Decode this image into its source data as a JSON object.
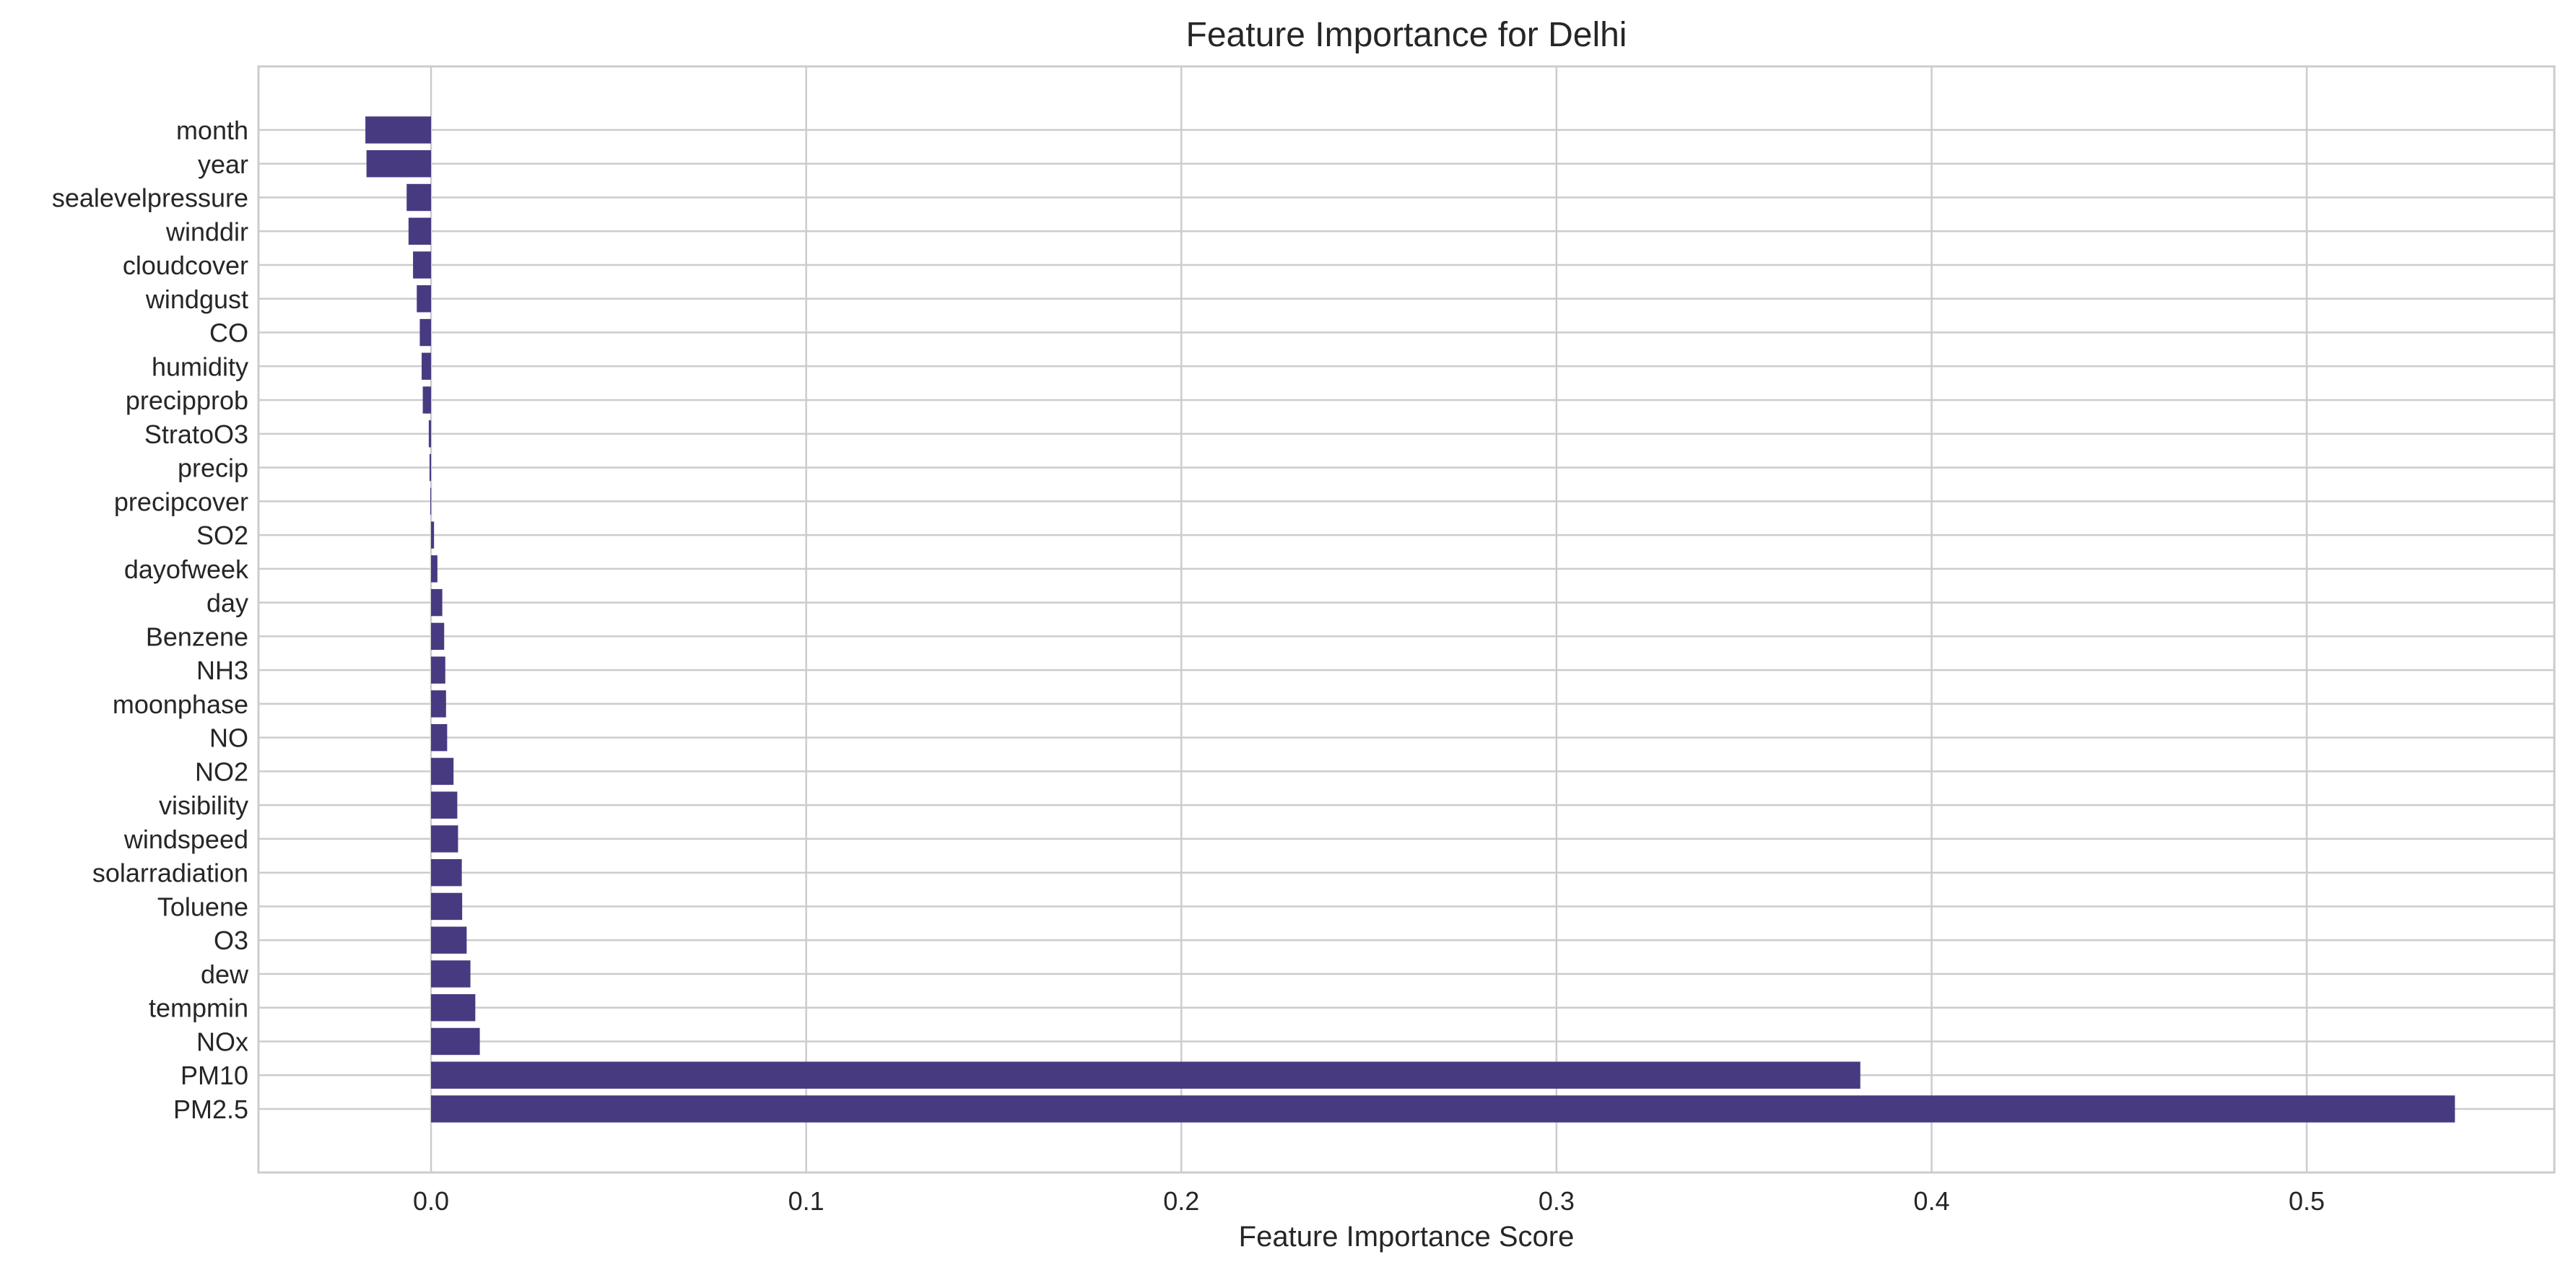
{
  "chart_data": {
    "type": "bar",
    "orientation": "horizontal",
    "title": "Feature Importance for Delhi",
    "xlabel": "Feature Importance Score",
    "ylabel": "",
    "xlim": [
      -0.046,
      0.566
    ],
    "xticks": [
      0.0,
      0.1,
      0.2,
      0.3,
      0.4,
      0.5
    ],
    "xtick_labels": [
      "0.0",
      "0.1",
      "0.2",
      "0.3",
      "0.4",
      "0.5"
    ],
    "grid": true,
    "bar_color": "#483a81",
    "categories": [
      "month",
      "year",
      "sealevelpressure",
      "winddir",
      "cloudcover",
      "windgust",
      "CO",
      "humidity",
      "precipprob",
      "StratoO3",
      "precip",
      "precipcover",
      "SO2",
      "dayofweek",
      "day",
      "Benzene",
      "NH3",
      "moonphase",
      "NO",
      "NO2",
      "visibility",
      "windspeed",
      "solarradiation",
      "Toluene",
      "O3",
      "dew",
      "tempmin",
      "NOx",
      "PM10",
      "PM2.5"
    ],
    "values": [
      -0.0175,
      -0.0172,
      -0.0065,
      -0.006,
      -0.0048,
      -0.0038,
      -0.003,
      -0.0025,
      -0.0022,
      -0.0006,
      -0.0004,
      -0.0002,
      0.0008,
      0.0017,
      0.003,
      0.0035,
      0.0038,
      0.004,
      0.0043,
      0.006,
      0.007,
      0.0072,
      0.0082,
      0.0083,
      0.0095,
      0.0105,
      0.0118,
      0.013,
      0.381,
      0.5395
    ]
  }
}
